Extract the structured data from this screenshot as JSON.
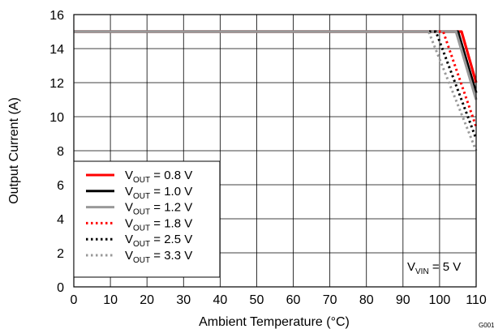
{
  "chart_data": {
    "type": "line",
    "xlabel": "Ambient Temperature (°C)",
    "ylabel": "Output Current (A)",
    "xlim": [
      0,
      110
    ],
    "ylim": [
      0,
      16
    ],
    "x_ticks": [
      "0",
      "10",
      "20",
      "30",
      "40",
      "50",
      "60",
      "70",
      "80",
      "90",
      "100",
      "110"
    ],
    "y_ticks": [
      "0",
      "2",
      "4",
      "6",
      "8",
      "10",
      "12",
      "14",
      "16"
    ],
    "grid": true,
    "legend_position": "bottom-left",
    "series": [
      {
        "name": "V_OUT = 0.8 V",
        "label_main": "V",
        "label_sub": "OUT",
        "label_rest": " = 0.8 V",
        "color": "#ff0000",
        "style": "solid",
        "x": [
          0,
          106,
          110
        ],
        "y": [
          15,
          15,
          12
        ]
      },
      {
        "name": "V_OUT = 1.0 V",
        "label_main": "V",
        "label_sub": "OUT",
        "label_rest": " = 1.0 V",
        "color": "#000000",
        "style": "solid",
        "x": [
          0,
          105,
          110
        ],
        "y": [
          15,
          15,
          11.4
        ]
      },
      {
        "name": "V_OUT = 1.2 V",
        "label_main": "V",
        "label_sub": "OUT",
        "label_rest": " = 1.2 V",
        "color": "#999999",
        "style": "solid",
        "x": [
          0,
          104.5,
          110
        ],
        "y": [
          15,
          15,
          11
        ]
      },
      {
        "name": "V_OUT = 1.8 V",
        "label_main": "V",
        "label_sub": "OUT",
        "label_rest": " = 1.8 V",
        "color": "#ff0000",
        "style": "dotted",
        "x": [
          0,
          101,
          110
        ],
        "y": [
          15,
          15,
          9.4
        ]
      },
      {
        "name": "V_OUT = 2.5 V",
        "label_main": "V",
        "label_sub": "OUT",
        "label_rest": " = 2.5 V",
        "color": "#000000",
        "style": "dotted",
        "x": [
          0,
          99,
          110
        ],
        "y": [
          15,
          15,
          8.7
        ]
      },
      {
        "name": "V_OUT = 3.3 V",
        "label_main": "V",
        "label_sub": "OUT",
        "label_rest": " = 3.3 V",
        "color": "#999999",
        "style": "dotted",
        "x": [
          0,
          97,
          110
        ],
        "y": [
          15,
          15,
          8
        ]
      }
    ],
    "annotation": {
      "main": "V",
      "sub": "VIN",
      "rest": " = 5 V"
    },
    "figure_id": "G001"
  }
}
